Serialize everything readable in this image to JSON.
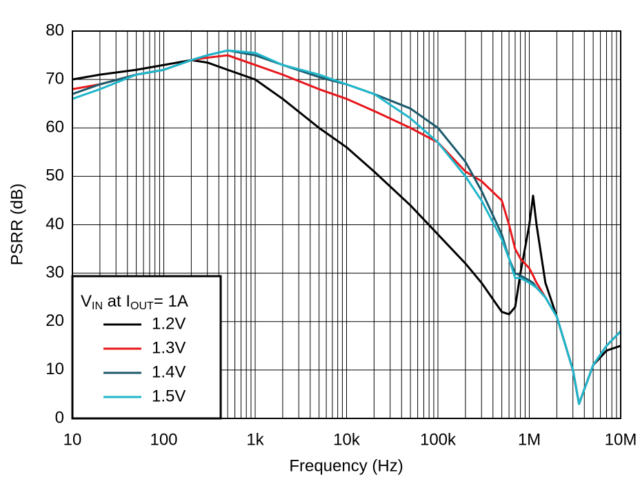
{
  "chart_data": {
    "type": "line",
    "x_label": "Frequency (Hz)",
    "y_label": "PSRR (dB)",
    "x_scale": "log",
    "grid": true,
    "minor_grid": true,
    "legend_position": "lower left",
    "legend_title": [
      "V",
      "IN",
      " at I",
      "OUT",
      "= 1A"
    ],
    "x": [
      10,
      20,
      50,
      100,
      200,
      300,
      500,
      1000,
      2000,
      5000,
      10000,
      20000,
      50000,
      100000,
      200000,
      300000,
      500000,
      600000,
      700000,
      800000,
      1000000,
      1100000,
      1200000,
      1500000,
      2000000,
      3000000,
      3500000,
      4000000,
      5000000,
      7000000,
      10000000
    ],
    "series": [
      {
        "name": "1.2V",
        "color": "#000000",
        "values": [
          70,
          71,
          72,
          73,
          74,
          73.5,
          72,
          70,
          66,
          60,
          56,
          51,
          44,
          38,
          32,
          28,
          22,
          21.5,
          23,
          30,
          40,
          46,
          40,
          28,
          21,
          10,
          3,
          6,
          11,
          14,
          15
        ]
      },
      {
        "name": "1.3V",
        "color": "#e8161b",
        "values": [
          68,
          69,
          71,
          72,
          74,
          74.5,
          75,
          73,
          71,
          68,
          66,
          63.5,
          60,
          57,
          51,
          49,
          45,
          40,
          35,
          33,
          31,
          29.5,
          28,
          25,
          21,
          10,
          3,
          6,
          11,
          15,
          18
        ]
      },
      {
        "name": "1.4V",
        "color": "#1b5a6c",
        "values": [
          67,
          69,
          71,
          72,
          74,
          75,
          76,
          75,
          73,
          70.5,
          69,
          67,
          64,
          60,
          53,
          47,
          38,
          33,
          30,
          29.5,
          28.5,
          28,
          27,
          25,
          21,
          10,
          3,
          6,
          11,
          15,
          18
        ]
      },
      {
        "name": "1.5V",
        "color": "#1fb6cb",
        "values": [
          66,
          68,
          71,
          72,
          74,
          75,
          76,
          75.5,
          73,
          71,
          69,
          67,
          62,
          57,
          50,
          45,
          37,
          33,
          29,
          29,
          28,
          27.5,
          27,
          25,
          21,
          10,
          3,
          6,
          11,
          15,
          18
        ]
      }
    ],
    "xlim": [
      10,
      10000000
    ],
    "xticks": [
      10,
      100,
      {
        "value": 1000,
        "label": "1k"
      },
      {
        "value": 10000,
        "label": "10k"
      },
      {
        "value": 100000,
        "label": "100k"
      },
      {
        "value": 1000000,
        "label": "1M"
      },
      {
        "value": 10000000,
        "label": "10M"
      }
    ],
    "ylim": [
      0,
      80
    ],
    "yticks": [
      0,
      10,
      20,
      30,
      40,
      50,
      60,
      70,
      80
    ]
  }
}
